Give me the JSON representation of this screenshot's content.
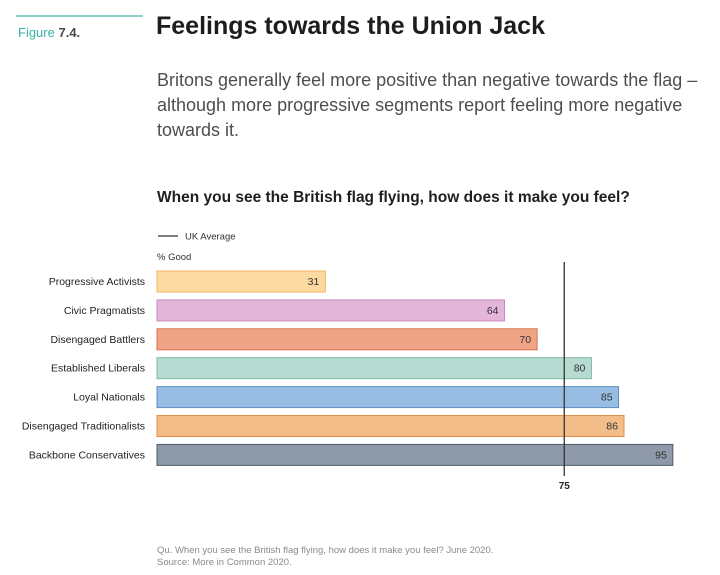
{
  "figure": {
    "prefix": "Figure",
    "number": "7.4."
  },
  "title": "Feelings towards the Union Jack",
  "subtitle": "Britons generally feel more positive than negative towards the flag – although more progressive segments report feeling more negative towards it.",
  "question": "When you see the British flag flying, how does it make you feel?",
  "legend_label": "UK Average",
  "footnote": {
    "question": "Qu. When you see the British flag flying, how does it make you feel? June 2020.",
    "source": "Source: More in Common 2020."
  },
  "chart_data": {
    "type": "bar",
    "orientation": "horizontal",
    "ylabel": "% Good",
    "categories": [
      "Progressive Activists",
      "Civic Pragmatists",
      "Disengaged Battlers",
      "Established Liberals",
      "Loyal Nationals",
      "Disengaged Traditionalists",
      "Backbone Conservatives"
    ],
    "values": [
      31,
      64,
      70,
      80,
      85,
      86,
      95
    ],
    "colors": [
      "#fcd9a0",
      "#e4b6da",
      "#f0a486",
      "#b7dbd1",
      "#98bde2",
      "#f3bd89",
      "#8e9aa9"
    ],
    "border_colors": [
      "#f3b563",
      "#c98bbd",
      "#d8714f",
      "#7fb8a9",
      "#5e8fc3",
      "#de8f4c",
      "#4f5b6b"
    ],
    "reference_line": {
      "label": "UK Average",
      "value": 75
    },
    "xlim": [
      0,
      100
    ],
    "legend_position": "top-left",
    "grid": false
  }
}
